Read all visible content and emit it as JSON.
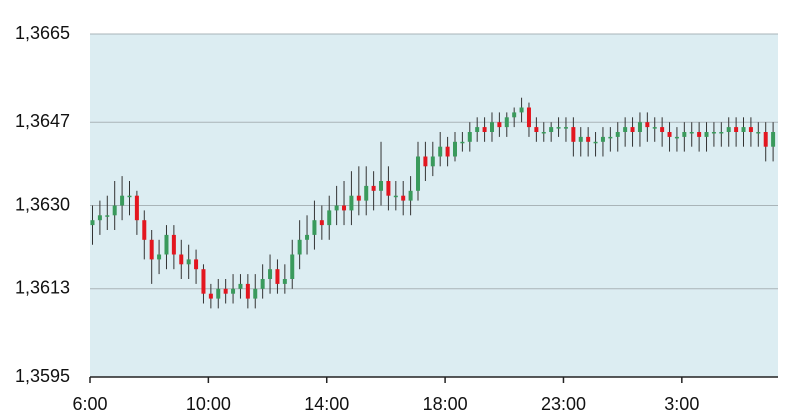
{
  "chart_data": {
    "type": "candlestick",
    "categories": [
      "6:00",
      null,
      null,
      null,
      null,
      null,
      null,
      null,
      null,
      null,
      null,
      null,
      null,
      null,
      null,
      null,
      "10:00",
      null,
      null,
      null,
      null,
      null,
      null,
      null,
      null,
      null,
      null,
      null,
      null,
      null,
      null,
      null,
      "14:00",
      null,
      null,
      null,
      null,
      null,
      null,
      null,
      null,
      null,
      null,
      null,
      null,
      null,
      null,
      null,
      "18:00",
      null,
      null,
      null,
      null,
      null,
      null,
      null,
      null,
      null,
      null,
      null,
      null,
      null,
      null,
      null,
      "23:00",
      null,
      null,
      null,
      null,
      null,
      null,
      null,
      null,
      null,
      null,
      null,
      null,
      null,
      null,
      null,
      "3:00",
      null,
      null,
      null,
      null,
      null,
      null,
      null,
      null,
      null,
      null,
      null,
      null
    ],
    "open": [
      1.3626,
      1.3627,
      1.3628,
      1.3628,
      1.363,
      1.3632,
      1.3632,
      1.3627,
      1.3623,
      1.3619,
      1.362,
      1.3624,
      1.362,
      1.3618,
      1.3619,
      1.3617,
      1.3612,
      1.3611,
      1.3613,
      1.3612,
      1.3613,
      1.3614,
      1.3611,
      1.3613,
      1.3615,
      1.3617,
      1.3614,
      1.3615,
      1.362,
      1.3623,
      1.3624,
      1.3627,
      1.3626,
      1.3629,
      1.363,
      1.3629,
      1.3632,
      1.3631,
      1.3634,
      1.3633,
      1.3635,
      1.3632,
      1.3632,
      1.3631,
      1.3633,
      1.364,
      1.3638,
      1.364,
      1.3642,
      1.364,
      1.3643,
      1.3643,
      1.3645,
      1.3646,
      1.3645,
      1.3647,
      1.3646,
      1.3648,
      1.3649,
      1.365,
      1.3646,
      1.3645,
      1.3645,
      1.3646,
      1.3646,
      1.3646,
      1.3643,
      1.3644,
      1.3643,
      1.3643,
      1.3644,
      1.3644,
      1.3645,
      1.3646,
      1.3645,
      1.3647,
      1.3646,
      1.3646,
      1.3645,
      1.3644,
      1.3644,
      1.3645,
      1.3645,
      1.3644,
      1.3645,
      1.3645,
      1.3645,
      1.3646,
      1.3645,
      1.3646,
      1.3645,
      1.3645,
      1.3642
    ],
    "high": [
      1.363,
      1.3631,
      1.3632,
      1.3635,
      1.3636,
      1.3635,
      1.3633,
      1.3629,
      1.3625,
      1.3623,
      1.3626,
      1.3626,
      1.3623,
      1.3622,
      1.3621,
      1.3618,
      1.3614,
      1.3615,
      1.3615,
      1.3616,
      1.3616,
      1.3616,
      1.3616,
      1.3618,
      1.362,
      1.3619,
      1.3618,
      1.3623,
      1.3627,
      1.3628,
      1.3631,
      1.363,
      1.3632,
      1.3634,
      1.3635,
      1.3637,
      1.3638,
      1.3638,
      1.3637,
      1.3643,
      1.3638,
      1.3635,
      1.3635,
      1.3636,
      1.3643,
      1.3643,
      1.3643,
      1.3645,
      1.3644,
      1.3645,
      1.3645,
      1.3647,
      1.3648,
      1.3648,
      1.3649,
      1.3649,
      1.3649,
      1.365,
      1.3652,
      1.3651,
      1.3648,
      1.3647,
      1.3647,
      1.3648,
      1.3648,
      1.3648,
      1.3646,
      1.3646,
      1.3645,
      1.3646,
      1.3646,
      1.3647,
      1.3648,
      1.3648,
      1.3649,
      1.3649,
      1.3648,
      1.3648,
      1.3647,
      1.3646,
      1.3647,
      1.3647,
      1.3647,
      1.3647,
      1.3647,
      1.3647,
      1.3648,
      1.3648,
      1.3648,
      1.3648,
      1.3647,
      1.3647,
      1.3647
    ],
    "low": [
      1.3622,
      1.3624,
      1.3625,
      1.3625,
      1.3627,
      1.3628,
      1.3624,
      1.3619,
      1.3614,
      1.3616,
      1.3617,
      1.3617,
      1.3615,
      1.3615,
      1.3614,
      1.361,
      1.3609,
      1.3609,
      1.361,
      1.361,
      1.3611,
      1.3609,
      1.3609,
      1.3611,
      1.3612,
      1.3612,
      1.3612,
      1.3613,
      1.3617,
      1.362,
      1.3621,
      1.3623,
      1.3623,
      1.3626,
      1.3626,
      1.3626,
      1.3628,
      1.3628,
      1.3629,
      1.363,
      1.3629,
      1.3629,
      1.3628,
      1.3628,
      1.3631,
      1.3635,
      1.3636,
      1.3638,
      1.3638,
      1.3639,
      1.3641,
      1.3641,
      1.3643,
      1.3643,
      1.3643,
      1.3644,
      1.3644,
      1.3646,
      1.3647,
      1.3644,
      1.3643,
      1.3643,
      1.3643,
      1.3644,
      1.3643,
      1.364,
      1.364,
      1.364,
      1.364,
      1.364,
      1.3641,
      1.3641,
      1.3642,
      1.3642,
      1.3642,
      1.3643,
      1.3643,
      1.3642,
      1.3641,
      1.3641,
      1.3641,
      1.3642,
      1.3641,
      1.3641,
      1.3642,
      1.3642,
      1.3642,
      1.3642,
      1.3642,
      1.3642,
      1.3642,
      1.3639,
      1.3639
    ],
    "close": [
      1.3627,
      1.3628,
      1.3628,
      1.363,
      1.3632,
      1.3632,
      1.3627,
      1.3623,
      1.3619,
      1.362,
      1.3624,
      1.362,
      1.3618,
      1.3619,
      1.3617,
      1.3612,
      1.3611,
      1.3613,
      1.3612,
      1.3613,
      1.3614,
      1.3611,
      1.3613,
      1.3615,
      1.3617,
      1.3614,
      1.3615,
      1.362,
      1.3623,
      1.3624,
      1.3627,
      1.3626,
      1.3629,
      1.363,
      1.3629,
      1.3632,
      1.3631,
      1.3634,
      1.3633,
      1.3635,
      1.3632,
      1.3632,
      1.3631,
      1.3633,
      1.364,
      1.3638,
      1.364,
      1.3642,
      1.364,
      1.3643,
      1.3643,
      1.3645,
      1.3646,
      1.3645,
      1.3647,
      1.3646,
      1.3648,
      1.3649,
      1.365,
      1.3646,
      1.3645,
      1.3645,
      1.3646,
      1.3646,
      1.3646,
      1.3643,
      1.3644,
      1.3643,
      1.3643,
      1.3644,
      1.3644,
      1.3645,
      1.3646,
      1.3645,
      1.3647,
      1.3646,
      1.3646,
      1.3645,
      1.3644,
      1.3644,
      1.3645,
      1.3645,
      1.3644,
      1.3645,
      1.3645,
      1.3645,
      1.3646,
      1.3645,
      1.3646,
      1.3645,
      1.3645,
      1.3642,
      1.3645
    ],
    "up_color": "#3a9a5c",
    "down_color": "#e3161f",
    "ylim": [
      1.3595,
      1.3665
    ],
    "yticks": [
      {
        "value": 1.3595,
        "label": "1,3595"
      },
      {
        "value": 1.3613,
        "label": "1,3613"
      },
      {
        "value": 1.363,
        "label": "1,3630"
      },
      {
        "value": 1.3647,
        "label": "1,3647"
      },
      {
        "value": 1.3665,
        "label": "1,3665"
      }
    ],
    "grid": true
  }
}
